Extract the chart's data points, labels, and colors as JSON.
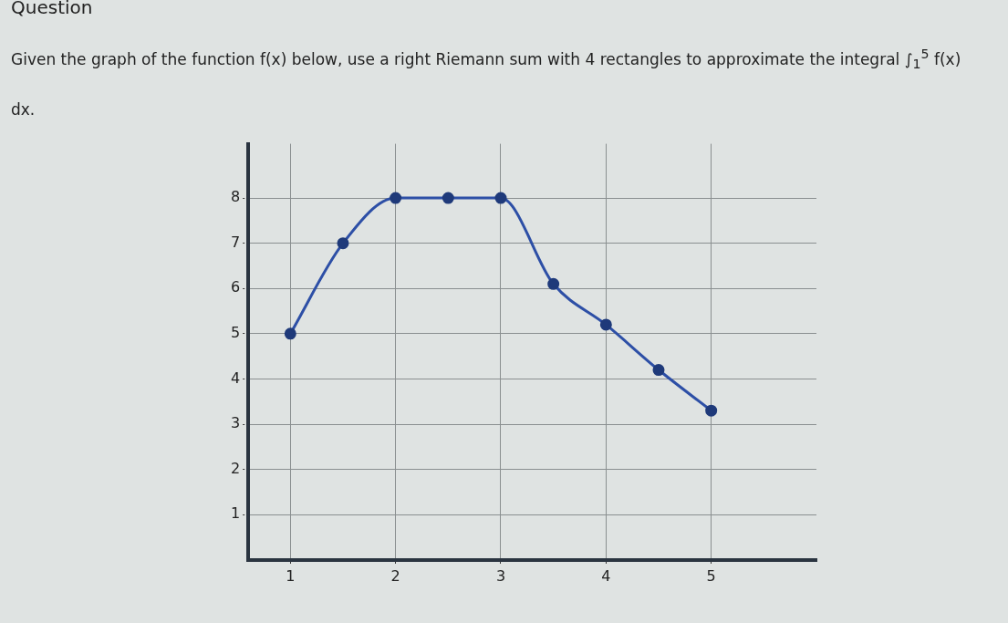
{
  "chart_data": {
    "type": "line",
    "title": "Question",
    "subtitle": "Given the graph of the function f(x) below, use a right Riemann sum with 4 rectangles to approximate the integral ∫$_{1}$$^{5}$ f(x) dx.",
    "x": [
      1,
      1.5,
      2,
      2.5,
      3,
      3.5,
      4,
      4.5,
      5
    ],
    "series": [
      {
        "color": "#2d4fa6",
        "values": [
          5,
          7,
          8,
          8,
          8,
          6.1,
          5.2,
          4.2,
          3.3
        ]
      }
    ],
    "xlim": [
      0.6,
      6
    ],
    "xticks": [
      1,
      2,
      3,
      4,
      5
    ],
    "ylim": [
      0,
      9.2
    ],
    "yticks": [
      1,
      2,
      3,
      4,
      5,
      6,
      7,
      8
    ],
    "grid": true,
    "legend": false,
    "marker": "circle",
    "line_style": "solid"
  }
}
